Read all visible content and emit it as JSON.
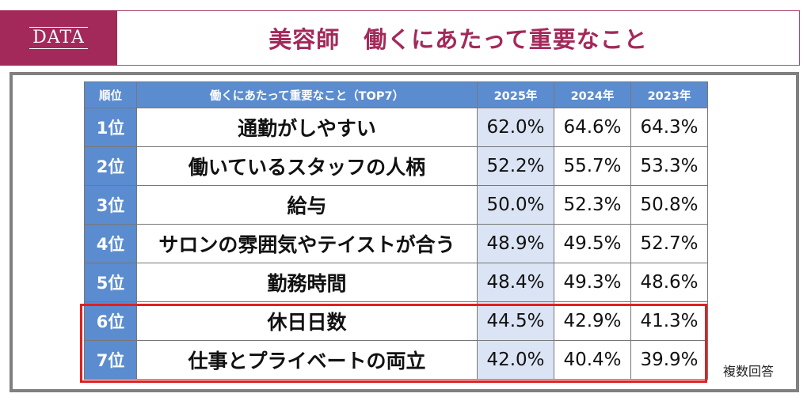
{
  "header": {
    "badge": "DATA",
    "title": "美容師　働くにあたって重要なこと"
  },
  "table": {
    "headers": {
      "rank": "順位",
      "item": "働くにあたって重要なこと（TOP7）",
      "y2025": "2025年",
      "y2024": "2024年",
      "y2023": "2023年"
    },
    "rows": [
      {
        "rank": "1位",
        "item": "通勤がしやすい",
        "y2025": "62.0%",
        "y2024": "64.6%",
        "y2023": "64.3%"
      },
      {
        "rank": "2位",
        "item": "働いているスタッフの人柄",
        "y2025": "52.2%",
        "y2024": "55.7%",
        "y2023": "53.3%"
      },
      {
        "rank": "3位",
        "item": "給与",
        "y2025": "50.0%",
        "y2024": "52.3%",
        "y2023": "50.8%"
      },
      {
        "rank": "4位",
        "item": "サロンの雰囲気やテイストが合う",
        "y2025": "48.9%",
        "y2024": "49.5%",
        "y2023": "52.7%"
      },
      {
        "rank": "5位",
        "item": "勤務時間",
        "y2025": "48.4%",
        "y2024": "49.3%",
        "y2023": "48.6%"
      },
      {
        "rank": "6位",
        "item": "休日日数",
        "y2025": "44.5%",
        "y2024": "42.9%",
        "y2023": "41.3%"
      },
      {
        "rank": "7位",
        "item": "仕事とプライベートの両立",
        "y2025": "42.0%",
        "y2024": "40.4%",
        "y2023": "39.9%"
      }
    ]
  },
  "note": "複数回答",
  "colors": {
    "brand": "#a3295a",
    "header_blue": "#5b8ccf",
    "highlight_col": "#dbe4f4",
    "highlight_border": "#e02020"
  }
}
